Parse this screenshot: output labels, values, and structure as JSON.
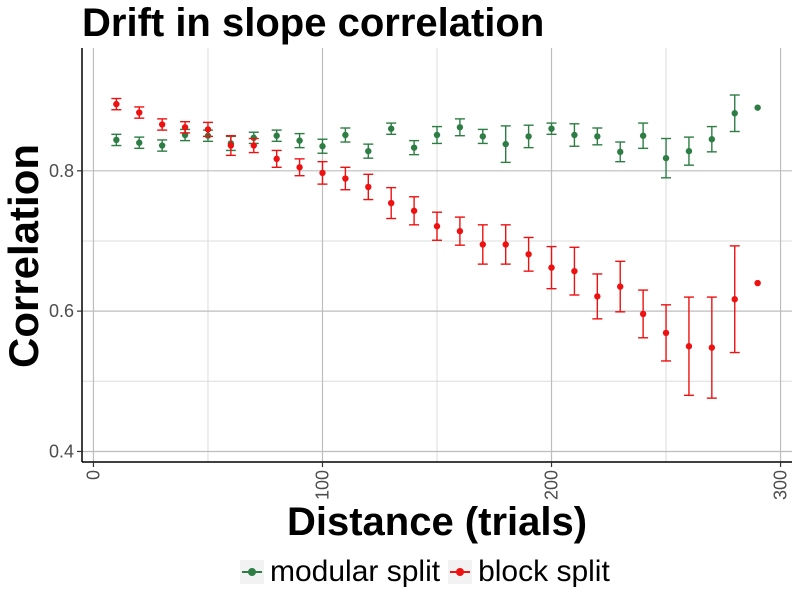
{
  "chart_data": {
    "type": "scatter",
    "title": "Drift in slope correlation",
    "xlabel": "Distance (trials)",
    "ylabel": "Correlation",
    "xlim": [
      -5,
      305
    ],
    "ylim": [
      0.385,
      0.975
    ],
    "x_ticks": [
      0,
      100,
      200,
      300
    ],
    "x_tick_labels": [
      "0",
      "100",
      "200",
      "300"
    ],
    "y_ticks": [
      0.4,
      0.6,
      0.8
    ],
    "y_tick_labels": [
      "0.4",
      "0.6",
      "0.8"
    ],
    "grid": true,
    "legend_position": "bottom",
    "series": [
      {
        "name": "modular split",
        "color": "#2e7d45",
        "points": [
          {
            "x": 10,
            "y": 0.844,
            "lo": 0.836,
            "hi": 0.852
          },
          {
            "x": 20,
            "y": 0.84,
            "lo": 0.832,
            "hi": 0.848
          },
          {
            "x": 30,
            "y": 0.836,
            "lo": 0.828,
            "hi": 0.844
          },
          {
            "x": 40,
            "y": 0.851,
            "lo": 0.843,
            "hi": 0.859
          },
          {
            "x": 50,
            "y": 0.85,
            "lo": 0.842,
            "hi": 0.858
          },
          {
            "x": 60,
            "y": 0.839,
            "lo": 0.829,
            "hi": 0.849
          },
          {
            "x": 70,
            "y": 0.847,
            "lo": 0.839,
            "hi": 0.855
          },
          {
            "x": 80,
            "y": 0.85,
            "lo": 0.842,
            "hi": 0.858
          },
          {
            "x": 90,
            "y": 0.843,
            "lo": 0.833,
            "hi": 0.853
          },
          {
            "x": 100,
            "y": 0.835,
            "lo": 0.825,
            "hi": 0.845
          },
          {
            "x": 110,
            "y": 0.851,
            "lo": 0.841,
            "hi": 0.861
          },
          {
            "x": 120,
            "y": 0.828,
            "lo": 0.818,
            "hi": 0.838
          },
          {
            "x": 130,
            "y": 0.86,
            "lo": 0.852,
            "hi": 0.868
          },
          {
            "x": 140,
            "y": 0.833,
            "lo": 0.823,
            "hi": 0.843
          },
          {
            "x": 150,
            "y": 0.851,
            "lo": 0.839,
            "hi": 0.863
          },
          {
            "x": 160,
            "y": 0.862,
            "lo": 0.85,
            "hi": 0.874
          },
          {
            "x": 170,
            "y": 0.849,
            "lo": 0.839,
            "hi": 0.859
          },
          {
            "x": 180,
            "y": 0.838,
            "lo": 0.812,
            "hi": 0.864
          },
          {
            "x": 190,
            "y": 0.849,
            "lo": 0.833,
            "hi": 0.865
          },
          {
            "x": 200,
            "y": 0.86,
            "lo": 0.852,
            "hi": 0.868
          },
          {
            "x": 210,
            "y": 0.851,
            "lo": 0.835,
            "hi": 0.867
          },
          {
            "x": 220,
            "y": 0.849,
            "lo": 0.837,
            "hi": 0.861
          },
          {
            "x": 230,
            "y": 0.827,
            "lo": 0.813,
            "hi": 0.841
          },
          {
            "x": 240,
            "y": 0.85,
            "lo": 0.832,
            "hi": 0.868
          },
          {
            "x": 250,
            "y": 0.818,
            "lo": 0.79,
            "hi": 0.846
          },
          {
            "x": 260,
            "y": 0.828,
            "lo": 0.808,
            "hi": 0.848
          },
          {
            "x": 270,
            "y": 0.845,
            "lo": 0.827,
            "hi": 0.863
          },
          {
            "x": 280,
            "y": 0.882,
            "lo": 0.856,
            "hi": 0.908
          },
          {
            "x": 290,
            "y": 0.89
          }
        ]
      },
      {
        "name": "block split",
        "color": "#ee1111",
        "points": [
          {
            "x": 10,
            "y": 0.895,
            "lo": 0.887,
            "hi": 0.903
          },
          {
            "x": 20,
            "y": 0.883,
            "lo": 0.875,
            "hi": 0.891
          },
          {
            "x": 30,
            "y": 0.866,
            "lo": 0.858,
            "hi": 0.874
          },
          {
            "x": 40,
            "y": 0.862,
            "lo": 0.854,
            "hi": 0.87
          },
          {
            "x": 50,
            "y": 0.859,
            "lo": 0.849,
            "hi": 0.869
          },
          {
            "x": 60,
            "y": 0.836,
            "lo": 0.822,
            "hi": 0.85
          },
          {
            "x": 70,
            "y": 0.836,
            "lo": 0.826,
            "hi": 0.846
          },
          {
            "x": 80,
            "y": 0.817,
            "lo": 0.805,
            "hi": 0.829
          },
          {
            "x": 90,
            "y": 0.805,
            "lo": 0.793,
            "hi": 0.817
          },
          {
            "x": 100,
            "y": 0.797,
            "lo": 0.781,
            "hi": 0.813
          },
          {
            "x": 110,
            "y": 0.789,
            "lo": 0.773,
            "hi": 0.805
          },
          {
            "x": 120,
            "y": 0.777,
            "lo": 0.759,
            "hi": 0.795
          },
          {
            "x": 130,
            "y": 0.754,
            "lo": 0.732,
            "hi": 0.776
          },
          {
            "x": 140,
            "y": 0.743,
            "lo": 0.723,
            "hi": 0.763
          },
          {
            "x": 150,
            "y": 0.721,
            "lo": 0.701,
            "hi": 0.741
          },
          {
            "x": 160,
            "y": 0.714,
            "lo": 0.694,
            "hi": 0.734
          },
          {
            "x": 170,
            "y": 0.695,
            "lo": 0.667,
            "hi": 0.723
          },
          {
            "x": 180,
            "y": 0.695,
            "lo": 0.667,
            "hi": 0.723
          },
          {
            "x": 190,
            "y": 0.681,
            "lo": 0.657,
            "hi": 0.705
          },
          {
            "x": 200,
            "y": 0.662,
            "lo": 0.632,
            "hi": 0.692
          },
          {
            "x": 210,
            "y": 0.657,
            "lo": 0.623,
            "hi": 0.691
          },
          {
            "x": 220,
            "y": 0.621,
            "lo": 0.589,
            "hi": 0.653
          },
          {
            "x": 230,
            "y": 0.635,
            "lo": 0.599,
            "hi": 0.671
          },
          {
            "x": 240,
            "y": 0.596,
            "lo": 0.562,
            "hi": 0.63
          },
          {
            "x": 250,
            "y": 0.569,
            "lo": 0.529,
            "hi": 0.609
          },
          {
            "x": 260,
            "y": 0.55,
            "lo": 0.48,
            "hi": 0.62
          },
          {
            "x": 270,
            "y": 0.548,
            "lo": 0.476,
            "hi": 0.62
          },
          {
            "x": 280,
            "y": 0.617,
            "lo": 0.541,
            "hi": 0.693
          },
          {
            "x": 290,
            "y": 0.64
          }
        ]
      }
    ]
  }
}
